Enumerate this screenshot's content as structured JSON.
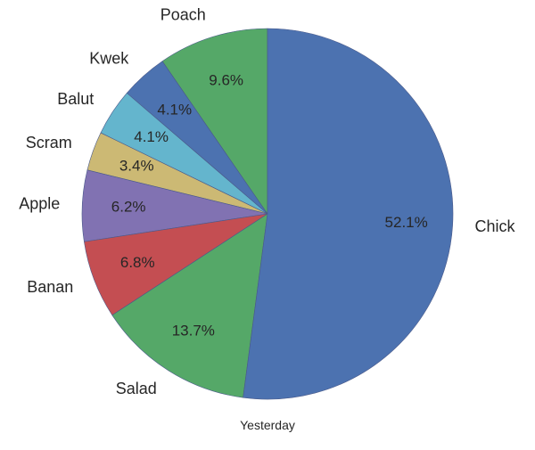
{
  "chart_data": {
    "type": "pie",
    "xlabel": "Yesterday",
    "start_angle_deg": 90,
    "direction": "counterclockwise",
    "slices": [
      {
        "label": "Poach",
        "value": 9.6,
        "pct_text": "9.6%",
        "color": "#55a868"
      },
      {
        "label": "Kwek",
        "value": 4.1,
        "pct_text": "4.1%",
        "color": "#4c72b0"
      },
      {
        "label": "Balut",
        "value": 4.1,
        "pct_text": "4.1%",
        "color": "#64b5cd"
      },
      {
        "label": "Scram",
        "value": 3.4,
        "pct_text": "3.4%",
        "color": "#ccb974"
      },
      {
        "label": "Apple",
        "value": 6.2,
        "pct_text": "6.2%",
        "color": "#8172b2"
      },
      {
        "label": "Banan",
        "value": 6.8,
        "pct_text": "6.8%",
        "color": "#c44e52"
      },
      {
        "label": "Salad",
        "value": 13.7,
        "pct_text": "13.7%",
        "color": "#55a868"
      },
      {
        "label": "Chick",
        "value": 52.1,
        "pct_text": "52.1%",
        "color": "#4c72b0"
      }
    ]
  }
}
